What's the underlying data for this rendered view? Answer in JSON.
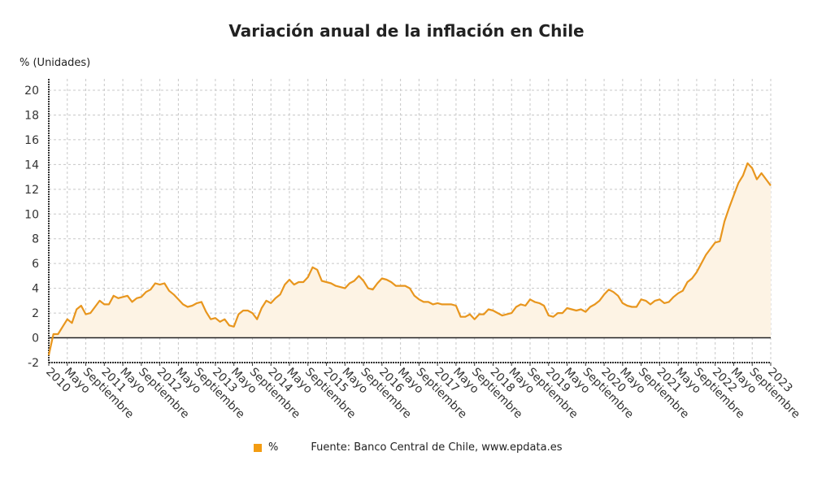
{
  "chart_data": {
    "type": "area",
    "title": "Variación anual de la inflación en Chile",
    "ylabel": "% (Unidades)",
    "xlabel": "",
    "ylim": [
      -2,
      20
    ],
    "yticks": [
      -2,
      0,
      2,
      4,
      6,
      8,
      10,
      12,
      14,
      16,
      18,
      20
    ],
    "x_start": "2010-01",
    "x_end": "2023-01",
    "xtick_labels": [
      "2010",
      "Mayo",
      "Septiembre",
      "2011",
      "Mayo",
      "Septiembre",
      "2012",
      "Mayo",
      "Septiembre",
      "2013",
      "Mayo",
      "Septiembre",
      "2014",
      "Mayo",
      "Septiembre",
      "2015",
      "Mayo",
      "Septiembre",
      "2016",
      "Mayo",
      "Septiembre",
      "2017",
      "Mayo",
      "Septiembre",
      "2018",
      "Mayo",
      "Septiembre",
      "2019",
      "Mayo",
      "Septiembre",
      "2020",
      "Mayo",
      "Septiembre",
      "2021",
      "Mayo",
      "Septiembre",
      "2022",
      "Mayo",
      "Septiembre",
      "2023"
    ],
    "grid": true,
    "legend_position": "bottom",
    "series": [
      {
        "name": "%",
        "color": "#e8961e",
        "fill": "#fdf3e4",
        "values": [
          -1.4,
          0.3,
          0.3,
          0.9,
          1.5,
          1.2,
          2.3,
          2.6,
          1.9,
          2.0,
          2.5,
          3.0,
          2.7,
          2.7,
          3.4,
          3.2,
          3.3,
          3.4,
          2.9,
          3.2,
          3.3,
          3.7,
          3.9,
          4.4,
          4.3,
          4.4,
          3.8,
          3.5,
          3.1,
          2.7,
          2.5,
          2.6,
          2.8,
          2.9,
          2.1,
          1.5,
          1.6,
          1.3,
          1.5,
          1.0,
          0.9,
          1.9,
          2.2,
          2.2,
          2.0,
          1.5,
          2.4,
          3.0,
          2.8,
          3.2,
          3.5,
          4.3,
          4.7,
          4.3,
          4.5,
          4.5,
          4.9,
          5.7,
          5.5,
          4.6,
          4.5,
          4.4,
          4.2,
          4.1,
          4.0,
          4.4,
          4.6,
          5.0,
          4.6,
          4.0,
          3.9,
          4.4,
          4.8,
          4.7,
          4.5,
          4.2,
          4.2,
          4.2,
          4.0,
          3.4,
          3.1,
          2.9,
          2.9,
          2.7,
          2.8,
          2.7,
          2.7,
          2.7,
          2.6,
          1.7,
          1.7,
          1.9,
          1.5,
          1.9,
          1.9,
          2.3,
          2.2,
          2.0,
          1.8,
          1.9,
          2.0,
          2.5,
          2.7,
          2.6,
          3.1,
          2.9,
          2.8,
          2.6,
          1.8,
          1.7,
          2.0,
          2.0,
          2.4,
          2.3,
          2.2,
          2.3,
          2.1,
          2.5,
          2.7,
          3.0,
          3.5,
          3.9,
          3.7,
          3.4,
          2.8,
          2.6,
          2.5,
          2.5,
          3.1,
          3.0,
          2.7,
          3.0,
          3.1,
          2.8,
          2.9,
          3.3,
          3.6,
          3.8,
          4.5,
          4.8,
          5.3,
          6.0,
          6.7,
          7.2,
          7.7,
          7.8,
          9.4,
          10.5,
          11.5,
          12.5,
          13.1,
          14.1,
          13.7,
          12.8,
          13.3,
          12.8,
          12.3
        ]
      }
    ]
  },
  "legend": {
    "label": "%",
    "source": "Fuente: Banco Central de Chile, www.epdata.es"
  }
}
